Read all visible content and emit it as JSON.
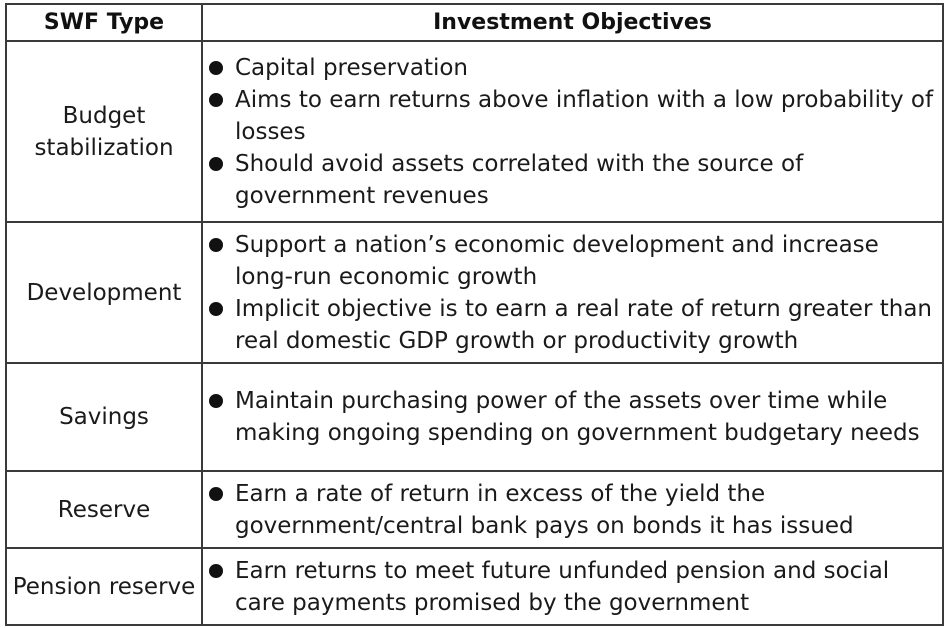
{
  "table": {
    "headers": {
      "type": "SWF Type",
      "objectives": "Investment Objectives"
    },
    "rows": [
      {
        "type": "Budget stabilization",
        "objectives": [
          "Capital preservation",
          "Aims to earn returns above inflation with a low probability of losses",
          "Should avoid assets correlated with the source of government revenues"
        ]
      },
      {
        "type": "Development",
        "objectives": [
          "Support a nation’s economic development and increase long-run economic growth",
          "Implicit objective is to earn a real rate of return greater than real domestic GDP growth or productivity growth"
        ]
      },
      {
        "type": "Savings",
        "objectives": [
          "Maintain purchasing power of the assets over time while making ongoing spending on government budgetary needs"
        ]
      },
      {
        "type": "Reserve",
        "objectives": [
          "Earn a rate of return in excess of the yield the government/central bank pays on bonds it has issued"
        ]
      },
      {
        "type": "Pension reserve",
        "objectives": [
          "Earn returns to meet future unfunded pension and social care payments promised by the government"
        ]
      }
    ]
  }
}
